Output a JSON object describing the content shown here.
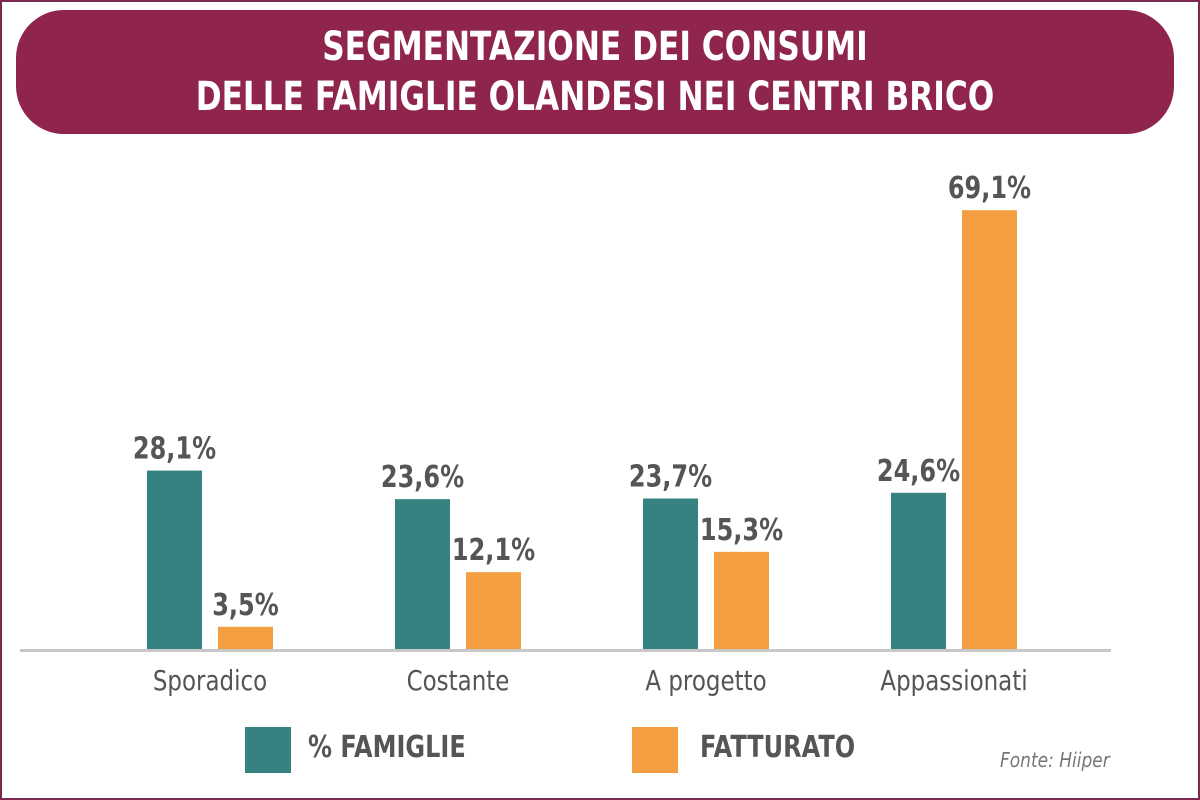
{
  "title": {
    "line1": "SEGMENTAZIONE DEI CONSUMI",
    "line2": "DELLE FAMIGLIE OLANDESI NEI CENTRI BRICO"
  },
  "colors": {
    "banner": "#8f244c",
    "famiglie": "#368281",
    "fatturato": "#f29e41",
    "label_text": "#555555",
    "axis": "#c8c8c8"
  },
  "legend": [
    {
      "label": "% FAMIGLIE",
      "color": "#368281"
    },
    {
      "label": "FATTURATO",
      "color": "#f29e41"
    }
  ],
  "source": "Fonte: Hiiper",
  "chart_data": {
    "type": "bar",
    "title": "SEGMENTAZIONE DEI CONSUMI DELLE FAMIGLIE OLANDESI NEI CENTRI BRICO",
    "xlabel": "",
    "ylabel": "",
    "ylim": [
      0,
      72
    ],
    "grid": false,
    "legend_position": "bottom",
    "categories": [
      "Sporadico",
      "Costante",
      "A progetto",
      "Appassionati"
    ],
    "series": [
      {
        "name": "% FAMIGLIE",
        "values": [
          28.1,
          23.6,
          23.7,
          24.6
        ],
        "labels": [
          "28,1%",
          "23,6%",
          "23,7%",
          "24,6%"
        ]
      },
      {
        "name": "FATTURATO",
        "values": [
          3.5,
          12.1,
          15.3,
          69.1
        ],
        "labels": [
          "3,5%",
          "12,1%",
          "15,3%",
          "69,1%"
        ]
      }
    ]
  }
}
